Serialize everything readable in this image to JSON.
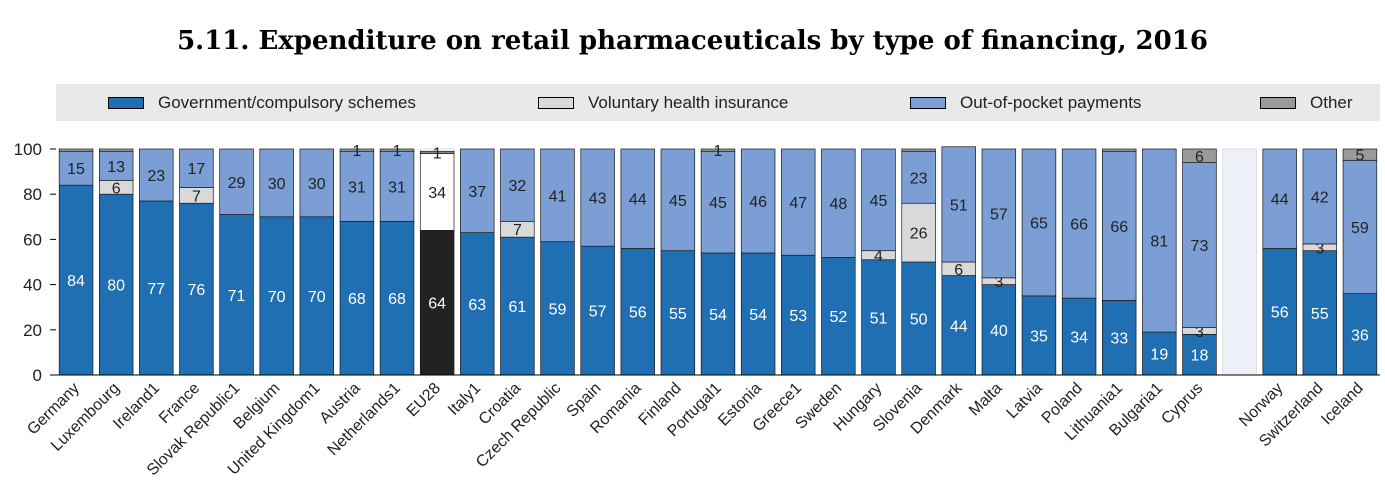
{
  "title": "5.11. Expenditure on retail pharmaceuticals by type of financing, 2016",
  "legend": [
    {
      "label": "Government/compulsory schemes",
      "color": "#1f6fb2"
    },
    {
      "label": "Voluntary health insurance",
      "color": "#d9d9d9"
    },
    {
      "label": "Out-of-pocket payments",
      "color": "#7b9fd4"
    },
    {
      "label": "Other",
      "color": "#9a9a9a"
    }
  ],
  "chart_data": {
    "type": "bar",
    "stacked": true,
    "ylim": [
      0,
      100
    ],
    "yticks": [
      0,
      20,
      40,
      60,
      80,
      100
    ],
    "grid": false,
    "legend_position": "top",
    "categories": [
      "Germany",
      "Luxembourg",
      "Ireland1",
      "France",
      "Slovak Republic1",
      "Belgium",
      "United Kingdom1",
      "Austria",
      "Netherlands1",
      "EU28",
      "Italy1",
      "Croatia",
      "Czech Republic",
      "Spain",
      "Romania",
      "Finland",
      "Portugal1",
      "Estonia",
      "Greece1",
      "Sweden",
      "Hungary",
      "Slovenia",
      "Denmark",
      "Malta",
      "Latvia",
      "Poland",
      "Lithuania1",
      "Bulgaria1",
      "Cyprus",
      "",
      "Norway",
      "Switzerland",
      "Iceland"
    ],
    "highlight_category": "EU28",
    "series": [
      {
        "name": "Government/compulsory schemes",
        "color": "#1f6fb2",
        "values": [
          84,
          80,
          77,
          76,
          71,
          70,
          70,
          68,
          68,
          64,
          63,
          61,
          59,
          57,
          56,
          55,
          54,
          54,
          53,
          52,
          51,
          50,
          44,
          40,
          35,
          34,
          33,
          19,
          18,
          null,
          56,
          55,
          36
        ]
      },
      {
        "name": "Voluntary health insurance",
        "color": "#d9d9d9",
        "values": [
          0,
          6,
          0,
          7,
          0,
          0,
          0,
          0,
          0,
          0,
          0,
          7,
          0,
          0,
          0,
          0,
          0,
          0,
          0,
          0,
          4,
          26,
          6,
          3,
          0,
          0,
          0,
          0,
          3,
          null,
          0,
          3,
          0
        ]
      },
      {
        "name": "Out-of-pocket payments",
        "color": "#7b9fd4",
        "values": [
          15,
          13,
          23,
          17,
          29,
          30,
          30,
          31,
          31,
          34,
          37,
          32,
          41,
          43,
          44,
          45,
          45,
          46,
          47,
          48,
          45,
          23,
          51,
          57,
          65,
          66,
          66,
          81,
          73,
          null,
          44,
          42,
          59
        ]
      },
      {
        "name": "Other",
        "color": "#9a9a9a",
        "values": [
          1,
          1,
          0,
          0,
          0,
          0,
          0,
          1,
          1,
          1,
          0,
          0,
          0,
          0,
          0,
          0,
          1,
          0,
          0,
          0,
          0,
          1,
          0,
          0,
          0,
          0,
          1,
          0,
          6,
          null,
          0,
          0,
          5
        ]
      }
    ],
    "labels": [
      [
        "84",
        "",
        "15",
        ""
      ],
      [
        "80",
        "6",
        "13",
        ""
      ],
      [
        "77",
        "",
        "23",
        ""
      ],
      [
        "76",
        "7",
        "17",
        ""
      ],
      [
        "71",
        "",
        "29",
        ""
      ],
      [
        "70",
        "",
        "30",
        ""
      ],
      [
        "70",
        "",
        "30",
        ""
      ],
      [
        "68",
        "",
        "31",
        "1"
      ],
      [
        "68",
        "",
        "31",
        "1"
      ],
      [
        "64",
        "",
        "34",
        "1"
      ],
      [
        "63",
        "",
        "37",
        ""
      ],
      [
        "61",
        "7",
        "32",
        ""
      ],
      [
        "59",
        "",
        "41",
        ""
      ],
      [
        "57",
        "",
        "43",
        ""
      ],
      [
        "56",
        "",
        "44",
        ""
      ],
      [
        "55",
        "",
        "45",
        ""
      ],
      [
        "54",
        "",
        "45",
        "1"
      ],
      [
        "54",
        "",
        "46",
        ""
      ],
      [
        "53",
        "",
        "47",
        ""
      ],
      [
        "52",
        "",
        "48",
        ""
      ],
      [
        "51",
        "4",
        "45",
        ""
      ],
      [
        "50",
        "26",
        "23",
        ""
      ],
      [
        "44",
        "6",
        "51",
        ""
      ],
      [
        "40",
        "3",
        "57",
        ""
      ],
      [
        "35",
        "",
        "65",
        ""
      ],
      [
        "34",
        "",
        "66",
        ""
      ],
      [
        "33",
        "",
        "66",
        ""
      ],
      [
        "19",
        "",
        "81",
        ""
      ],
      [
        "18",
        "3",
        "73",
        "6"
      ],
      [
        "",
        "",
        "",
        ""
      ],
      [
        "56",
        "",
        "44",
        ""
      ],
      [
        "55",
        "3",
        "42",
        ""
      ],
      [
        "36",
        "",
        "59",
        "5"
      ]
    ]
  }
}
